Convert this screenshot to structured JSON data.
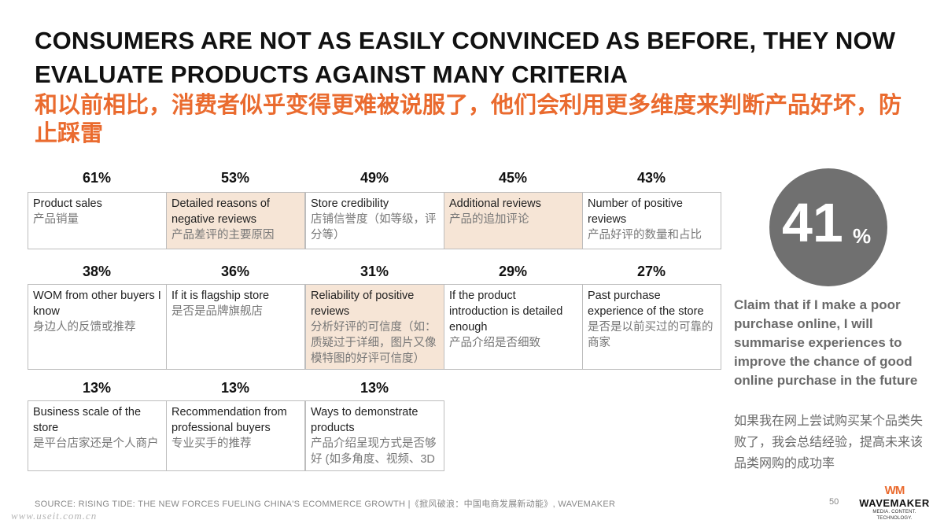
{
  "title_en": "CONSUMERS ARE NOT AS EASILY CONVINCED AS BEFORE, THEY NOW EVALUATE PRODUCTS AGAINST MANY CRITERIA",
  "title_zh": "和以前相比，消费者似乎变得更难被说服了，他们会利用更多维度来判断产品好坏，防止踩雷",
  "criteria": [
    {
      "pct": "61%",
      "en": "Product sales",
      "zh": "产品销量",
      "highlight": false
    },
    {
      "pct": "53%",
      "en": "Detailed reasons of negative reviews",
      "zh": "产品差评的主要原因",
      "highlight": true
    },
    {
      "pct": "49%",
      "en": "Store credibility",
      "zh": "店铺信誉度（如等级，评分等）",
      "highlight": false
    },
    {
      "pct": "45%",
      "en": "Additional reviews",
      "zh": "产品的追加评论",
      "highlight": true
    },
    {
      "pct": "43%",
      "en": "Number of positive reviews",
      "zh": "产品好评的数量和占比",
      "highlight": false
    },
    {
      "pct": "38%",
      "en": "WOM from other buyers I know",
      "zh": "身边人的反馈或推荐",
      "highlight": false
    },
    {
      "pct": "36%",
      "en": "If it is flagship store",
      "zh": "是否是品牌旗舰店",
      "highlight": false
    },
    {
      "pct": "31%",
      "en": "Reliability of positive reviews",
      "zh": "分析好评的可信度（如：质疑过于详细，图片又像模特图的好评可信度）",
      "highlight": true
    },
    {
      "pct": "29%",
      "en": "If the product introduction is detailed enough",
      "zh": "产品介绍是否细致",
      "highlight": false
    },
    {
      "pct": "27%",
      "en": "Past purchase experience of the store",
      "zh": "是否是以前买过的可靠的商家",
      "highlight": false
    },
    {
      "pct": "13%",
      "en": "Business scale of the store",
      "zh": "是平台店家还是个人商户",
      "highlight": false
    },
    {
      "pct": "13%",
      "en": "Recommendation from professional buyers",
      "zh": "专业买手的推荐",
      "highlight": false
    },
    {
      "pct": "13%",
      "en": "Ways to demonstrate products",
      "zh": "产品介绍呈现方式是否够好 (如多角度、视频、3D",
      "highlight": false
    }
  ],
  "stat": {
    "number": "41",
    "unit": "%"
  },
  "claim_en": "Claim that if I make a poor purchase online, I will summarise experiences to improve the chance of good online purchase in the future",
  "claim_zh": "如果我在网上尝试购买某个品类失败了，我会总结经验，提高未来该品类网购的成功率",
  "footer_source": "SOURCE: RISING TIDE: THE NEW FORCES FUELING CHINA'S ECOMMERCE GROWTH |《掀风破浪：中国电商发展新动能》, WAVEMAKER",
  "page_number": "50",
  "logo": {
    "mark": "WM",
    "name": "WAVEMAKER",
    "tagline": "MEDIA. CONTENT. TECHNOLOGY."
  },
  "watermark": "www.useit.com.cn",
  "colors": {
    "accent": "#ea6b2f",
    "highlight": "#f6e5d6",
    "circle": "#707070"
  }
}
